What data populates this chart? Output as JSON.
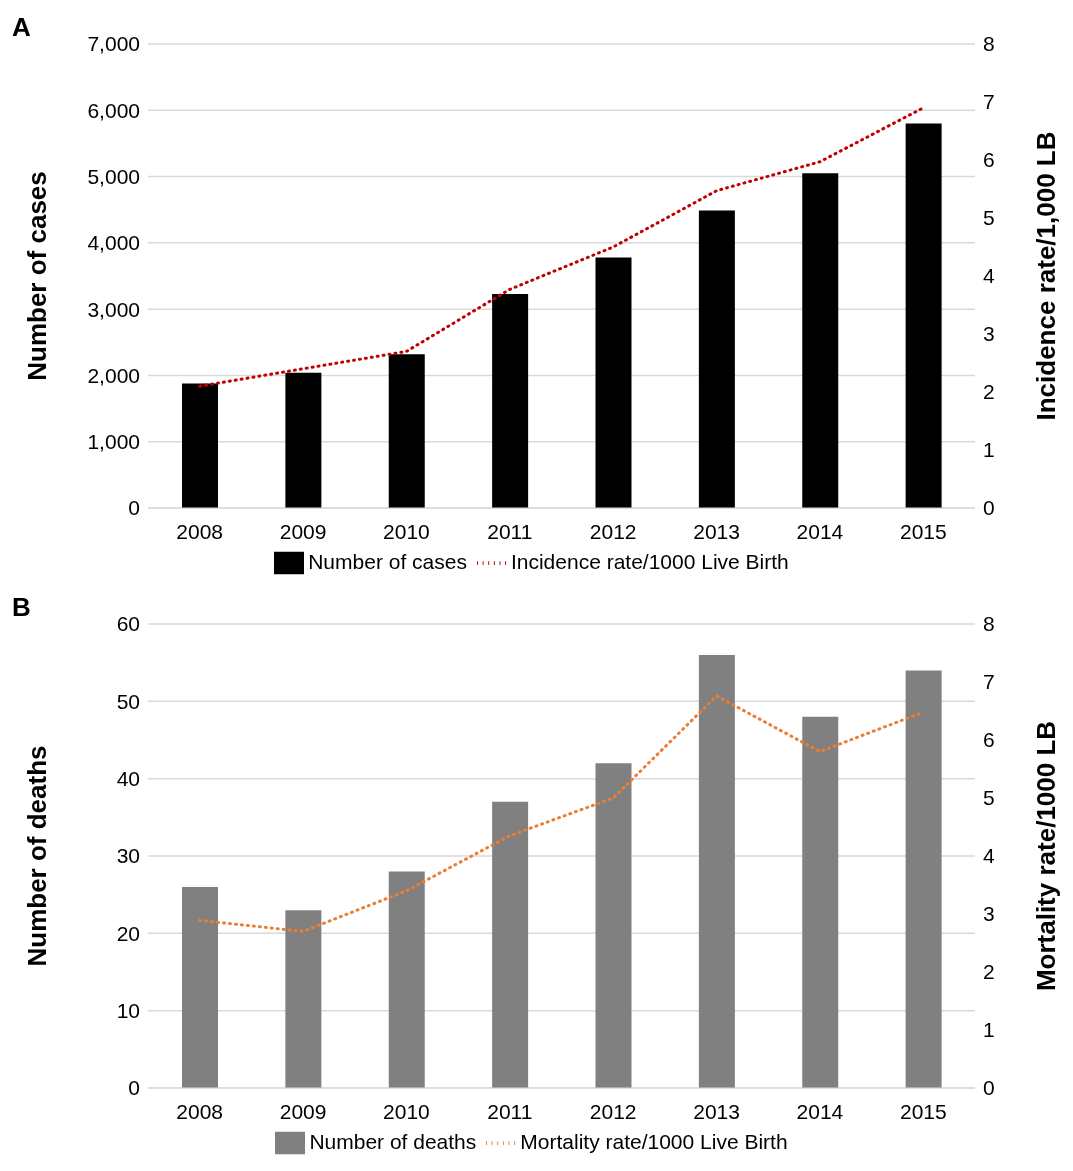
{
  "chart_data": [
    {
      "type": "bar",
      "title": "A",
      "categories": [
        "2008",
        "2009",
        "2010",
        "2011",
        "2012",
        "2013",
        "2014",
        "2015"
      ],
      "ylabel": "Number of cases",
      "y2label": "Incidence rate/1,000 LB",
      "series": [
        {
          "name": "Number of cases",
          "color": "#000000",
          "values": [
            1880,
            2040,
            2320,
            3230,
            3780,
            4490,
            5050,
            5800
          ]
        },
        {
          "name": "Incidence rate/1000 Live Birth",
          "type": "line",
          "axis": "y2",
          "color": "#c00000",
          "line_style": "dotted",
          "values": [
            2.1,
            2.4,
            2.7,
            3.77,
            4.5,
            5.47,
            5.97,
            6.9
          ]
        }
      ],
      "ylim": [
        0,
        7000
      ],
      "yticks": [
        0,
        {
          "value": 1000,
          "label": "1,000"
        },
        {
          "value": 2000,
          "label": "2,000"
        },
        {
          "value": 3000,
          "label": "3,000"
        },
        {
          "value": 4000,
          "label": "4,000"
        },
        {
          "value": 5000,
          "label": "5,000"
        },
        {
          "value": 6000,
          "label": "6,000"
        },
        {
          "value": 7000,
          "label": "7,000"
        }
      ],
      "y2lim": [
        0,
        8
      ],
      "y2ticks": [
        0,
        1,
        2,
        3,
        4,
        5,
        6,
        7,
        8
      ],
      "grid": "y",
      "legend": "bottom",
      "marker": "none"
    },
    {
      "type": "bar",
      "title": "B",
      "categories": [
        "2008",
        "2009",
        "2010",
        "2011",
        "2012",
        "2013",
        "2014",
        "2015"
      ],
      "ylabel": "Number of deaths",
      "y2label": "Mortality rate/1000 LB",
      "series": [
        {
          "name": "Number of deaths",
          "color": "#808080",
          "values": [
            26,
            23,
            28,
            37,
            42,
            56,
            48,
            54
          ]
        },
        {
          "name": "Mortality rate/1000 Live Birth",
          "type": "line",
          "axis": "y2",
          "color": "#ed7d31",
          "line_style": "dotted",
          "values": [
            2.89,
            2.7,
            3.4,
            4.35,
            5.0,
            6.76,
            5.8,
            6.48
          ]
        }
      ],
      "ylim": [
        0,
        60
      ],
      "yticks": [
        0,
        10,
        20,
        30,
        40,
        50,
        60
      ],
      "y2lim": [
        0,
        8
      ],
      "y2ticks": [
        0,
        1,
        2,
        3,
        4,
        5,
        6,
        7,
        8
      ],
      "grid": "y",
      "legend": "bottom",
      "marker": "none"
    }
  ]
}
